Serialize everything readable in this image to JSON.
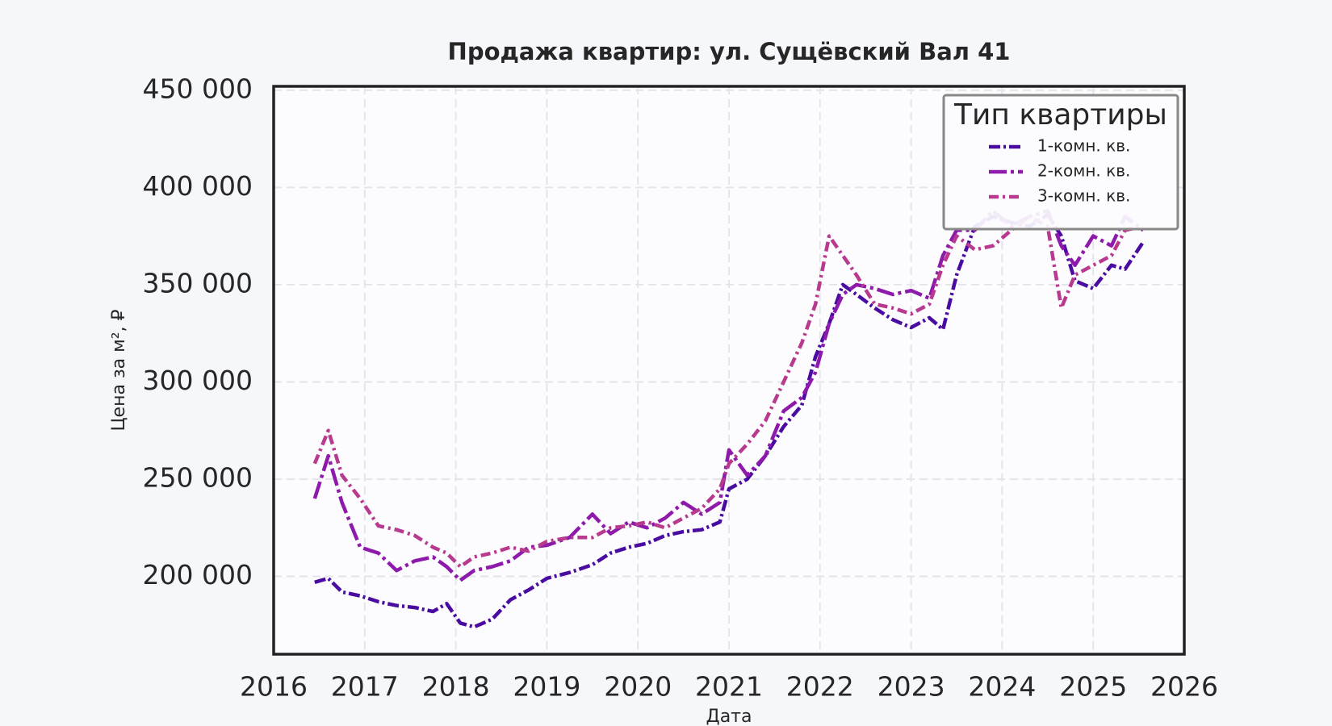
{
  "chart_data": {
    "type": "line",
    "title": "Продажа квартир: ул. Сущёвский Вал 41",
    "x_label": "Дата",
    "y_label": "Цена за м², ₽",
    "legend_title": "Тип квартиры",
    "legend": "upper right",
    "grid": true,
    "xlim": [
      2016,
      2026
    ],
    "xticks": [
      2016,
      2017,
      2018,
      2019,
      2020,
      2021,
      2022,
      2023,
      2024,
      2025,
      2026
    ],
    "ylim": [
      160000,
      452000
    ],
    "yticks": [
      {
        "value": 200000,
        "label": "200 000"
      },
      {
        "value": 250000,
        "label": "250 000"
      },
      {
        "value": 300000,
        "label": "300 000"
      },
      {
        "value": 350000,
        "label": "350 000"
      },
      {
        "value": 400000,
        "label": "400 000"
      },
      {
        "value": 450000,
        "label": "450 000"
      }
    ],
    "x": [
      2016.45,
      2016.6,
      2016.75,
      2016.95,
      2017.15,
      2017.35,
      2017.55,
      2017.75,
      2017.9,
      2018.05,
      2018.2,
      2018.4,
      2018.6,
      2018.8,
      2019.0,
      2019.25,
      2019.5,
      2019.7,
      2019.9,
      2020.1,
      2020.3,
      2020.5,
      2020.7,
      2020.9,
      2021.0,
      2021.2,
      2021.4,
      2021.6,
      2021.8,
      2021.95,
      2022.1,
      2022.25,
      2022.4,
      2022.6,
      2022.8,
      2023.0,
      2023.2,
      2023.35,
      2023.5,
      2023.7,
      2023.9,
      2024.1,
      2024.3,
      2024.5,
      2024.65,
      2024.8,
      2025.0,
      2025.2,
      2025.35,
      2025.55
    ],
    "series": [
      {
        "name": "1-комн. кв.",
        "color": "#4a0ca0",
        "values": [
          197000,
          199000,
          192000,
          190000,
          187000,
          185000,
          184000,
          182000,
          186000,
          176000,
          174000,
          178000,
          188000,
          193000,
          199000,
          202000,
          206000,
          212000,
          215000,
          217000,
          221000,
          223000,
          224000,
          228000,
          245000,
          250000,
          262000,
          277000,
          288000,
          313000,
          330000,
          350000,
          345000,
          338000,
          332000,
          328000,
          333000,
          327000,
          355000,
          380000,
          385000,
          382000,
          380000,
          386000,
          375000,
          352000,
          348000,
          360000,
          358000,
          372000
        ]
      },
      {
        "name": "2-комн. кв.",
        "color": "#8d1aaa",
        "values": [
          240000,
          262000,
          238000,
          215000,
          212000,
          203000,
          208000,
          210000,
          205000,
          198000,
          203000,
          205000,
          208000,
          215000,
          216000,
          220000,
          232000,
          222000,
          228000,
          225000,
          230000,
          238000,
          232000,
          238000,
          265000,
          252000,
          262000,
          285000,
          292000,
          305000,
          330000,
          345000,
          350000,
          348000,
          345000,
          347000,
          343000,
          365000,
          378000,
          378000,
          388000,
          380000,
          385000,
          388000,
          370000,
          360000,
          375000,
          370000,
          385000,
          378000
        ]
      },
      {
        "name": "3-комн. кв.",
        "color": "#b73a8e",
        "values": [
          258000,
          275000,
          252000,
          240000,
          226000,
          224000,
          221000,
          215000,
          212000,
          205000,
          210000,
          212000,
          215000,
          213000,
          218000,
          220000,
          220000,
          225000,
          226000,
          228000,
          225000,
          230000,
          235000,
          245000,
          258000,
          268000,
          280000,
          300000,
          320000,
          340000,
          375000,
          365000,
          355000,
          340000,
          338000,
          335000,
          340000,
          360000,
          375000,
          368000,
          370000,
          378000,
          385000,
          380000,
          338000,
          355000,
          360000,
          365000,
          378000,
          380000
        ]
      }
    ]
  }
}
